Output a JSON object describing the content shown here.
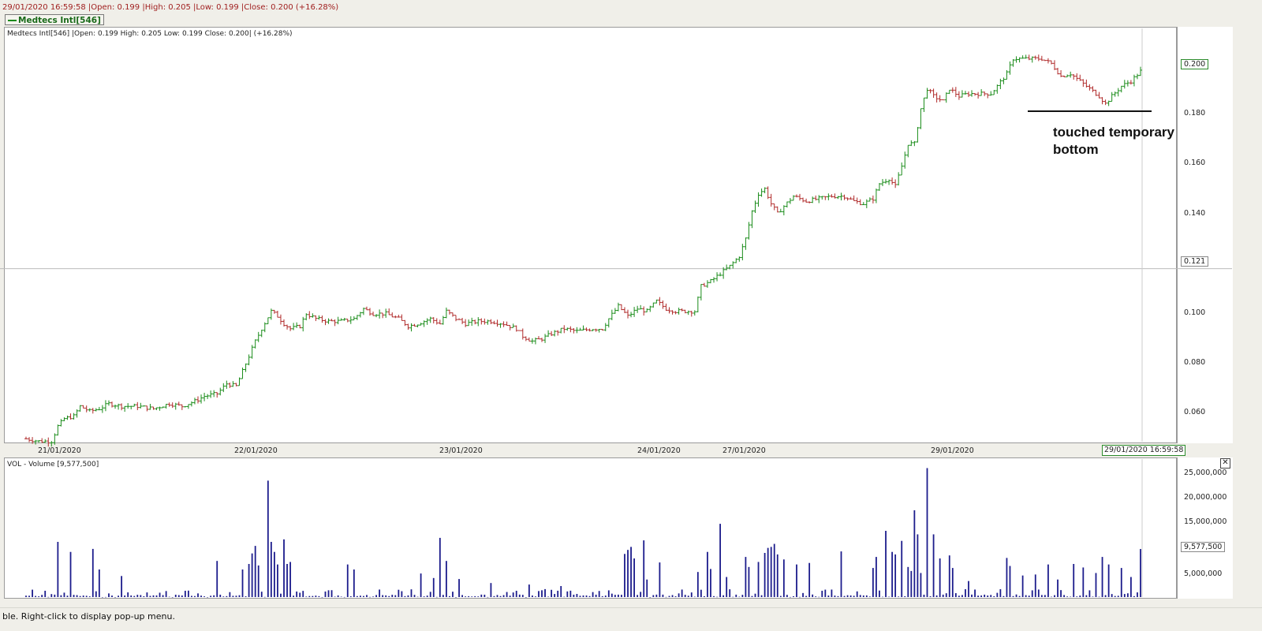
{
  "header": {
    "info": "29/01/2020 16:59:58 |Open: 0.199 |High: 0.205 |Low: 0.199 |Close: 0.200 (+16.28%)",
    "series_tag": "Medtecs Intl[546]"
  },
  "price_panel": {
    "title": "Medtecs Intl[546] |Open: 0.199  High: 0.205  Low: 0.199  Close: 0.200| (+16.28%)",
    "last_value_label": "0.200",
    "crosshair_value_label": "0.121",
    "crosshair_time_label": "29/01/2020 16:59:58",
    "annotation_line1": "touched temporary",
    "annotation_line2": "bottom"
  },
  "volume_panel": {
    "title": "VOL - Volume [9,577,500]",
    "last_value_label": "9,577,500",
    "close_icon": "close-icon",
    "close_glyph": "✕"
  },
  "status_bar": {
    "text": "ble. Right-click to display pop-up menu."
  },
  "colors": {
    "up": "#1a8c1a",
    "down": "#b02a2a",
    "volume": "#1c1c8c",
    "annotation": "#111111"
  },
  "chart_data": [
    {
      "type": "ohlc",
      "title": "Medtecs Intl[546]",
      "y_tick_labels": [
        "0.060",
        "0.080",
        "0.100",
        "0.120",
        "0.140",
        "0.160",
        "0.180"
      ],
      "y_ticks": [
        0.06,
        0.08,
        0.1,
        0.12,
        0.14,
        0.16,
        0.18
      ],
      "x_tick_labels": [
        "21/01/2020",
        "22/01/2020",
        "23/01/2020",
        "24/01/2020",
        "27/01/2020",
        "29/01/2020"
      ],
      "ylim": [
        0.047,
        0.215
      ],
      "last_close": 0.2,
      "crosshair_value": 0.121,
      "annotated_support_level": 0.184,
      "close_path": [
        [
          0,
          0.053
        ],
        [
          4,
          0.052
        ],
        [
          8,
          0.052
        ],
        [
          10,
          0.058
        ],
        [
          12,
          0.061
        ],
        [
          15,
          0.062
        ],
        [
          17,
          0.066
        ],
        [
          20,
          0.064
        ],
        [
          23,
          0.065
        ],
        [
          26,
          0.067
        ],
        [
          30,
          0.066
        ],
        [
          35,
          0.066
        ],
        [
          40,
          0.065
        ],
        [
          45,
          0.067
        ],
        [
          49,
          0.066
        ],
        [
          53,
          0.068
        ],
        [
          56,
          0.07
        ],
        [
          60,
          0.071
        ],
        [
          63,
          0.075
        ],
        [
          66,
          0.074
        ],
        [
          68,
          0.08
        ],
        [
          70,
          0.086
        ],
        [
          72,
          0.092
        ],
        [
          74,
          0.097
        ],
        [
          77,
          0.104
        ],
        [
          79,
          0.102
        ],
        [
          81,
          0.099
        ],
        [
          83,
          0.097
        ],
        [
          86,
          0.098
        ],
        [
          88,
          0.103
        ],
        [
          91,
          0.101
        ],
        [
          95,
          0.1
        ],
        [
          99,
          0.1
        ],
        [
          103,
          0.101
        ],
        [
          106,
          0.105
        ],
        [
          109,
          0.103
        ],
        [
          113,
          0.103
        ],
        [
          117,
          0.101
        ],
        [
          120,
          0.098
        ],
        [
          123,
          0.099
        ],
        [
          127,
          0.101
        ],
        [
          130,
          0.099
        ],
        [
          132,
          0.104
        ],
        [
          135,
          0.101
        ],
        [
          138,
          0.099
        ],
        [
          142,
          0.1
        ],
        [
          146,
          0.1
        ],
        [
          150,
          0.099
        ],
        [
          154,
          0.097
        ],
        [
          156,
          0.094
        ],
        [
          159,
          0.092
        ],
        [
          162,
          0.093
        ],
        [
          165,
          0.095
        ],
        [
          169,
          0.097
        ],
        [
          173,
          0.096
        ],
        [
          178,
          0.097
        ],
        [
          181,
          0.097
        ],
        [
          183,
          0.101
        ],
        [
          186,
          0.106
        ],
        [
          189,
          0.102
        ],
        [
          192,
          0.105
        ],
        [
          195,
          0.104
        ],
        [
          198,
          0.108
        ],
        [
          201,
          0.105
        ],
        [
          204,
          0.104
        ],
        [
          208,
          0.104
        ],
        [
          210,
          0.104
        ],
        [
          212,
          0.114
        ],
        [
          215,
          0.116
        ],
        [
          218,
          0.119
        ],
        [
          221,
          0.122
        ],
        [
          224,
          0.126
        ],
        [
          226,
          0.133
        ],
        [
          228,
          0.144
        ],
        [
          230,
          0.151
        ],
        [
          232,
          0.153
        ],
        [
          234,
          0.147
        ],
        [
          236,
          0.143
        ],
        [
          238,
          0.146
        ],
        [
          241,
          0.15
        ],
        [
          245,
          0.148
        ],
        [
          249,
          0.149
        ],
        [
          253,
          0.15
        ],
        [
          257,
          0.15
        ],
        [
          260,
          0.148
        ],
        [
          263,
          0.147
        ],
        [
          266,
          0.149
        ],
        [
          268,
          0.155
        ],
        [
          271,
          0.157
        ],
        [
          273,
          0.154
        ],
        [
          275,
          0.162
        ],
        [
          277,
          0.171
        ],
        [
          279,
          0.171
        ],
        [
          281,
          0.185
        ],
        [
          283,
          0.193
        ],
        [
          285,
          0.19
        ],
        [
          288,
          0.188
        ],
        [
          290,
          0.193
        ],
        [
          293,
          0.19
        ],
        [
          296,
          0.191
        ],
        [
          300,
          0.191
        ],
        [
          303,
          0.191
        ],
        [
          305,
          0.194
        ],
        [
          308,
          0.199
        ],
        [
          310,
          0.205
        ],
        [
          313,
          0.205
        ],
        [
          316,
          0.205
        ],
        [
          319,
          0.205
        ],
        [
          322,
          0.203
        ],
        [
          325,
          0.198
        ],
        [
          328,
          0.199
        ],
        [
          331,
          0.196
        ],
        [
          334,
          0.193
        ],
        [
          337,
          0.19
        ],
        [
          339,
          0.187
        ],
        [
          341,
          0.19
        ],
        [
          344,
          0.194
        ],
        [
          347,
          0.196
        ],
        [
          350,
          0.2
        ]
      ]
    },
    {
      "type": "bar",
      "title": "VOL - Volume",
      "y_tick_labels": [
        "5,000,000",
        "10,000,000",
        "15,000,000",
        "20,000,000",
        "25,000,000"
      ],
      "y_ticks": [
        5000000,
        10000000,
        15000000,
        20000000,
        25000000
      ],
      "ylim": [
        0,
        27500000
      ],
      "last_value": 9577500,
      "major_bars": [
        [
          10,
          11000000
        ],
        [
          14,
          9000000
        ],
        [
          21,
          9600000
        ],
        [
          23,
          5500000
        ],
        [
          30,
          4200000
        ],
        [
          60,
          7200000
        ],
        [
          68,
          5500000
        ],
        [
          70,
          6600000
        ],
        [
          71,
          8700000
        ],
        [
          72,
          10200000
        ],
        [
          73,
          6300000
        ],
        [
          76,
          23200000
        ],
        [
          77,
          11000000
        ],
        [
          78,
          9000000
        ],
        [
          79,
          6500000
        ],
        [
          81,
          11500000
        ],
        [
          82,
          6600000
        ],
        [
          83,
          7000000
        ],
        [
          101,
          6500000
        ],
        [
          103,
          5500000
        ],
        [
          124,
          4700000
        ],
        [
          128,
          3800000
        ],
        [
          130,
          11800000
        ],
        [
          132,
          7200000
        ],
        [
          136,
          3600000
        ],
        [
          146,
          2800000
        ],
        [
          158,
          2500000
        ],
        [
          168,
          2200000
        ],
        [
          188,
          8600000
        ],
        [
          189,
          9400000
        ],
        [
          190,
          10000000
        ],
        [
          191,
          7700000
        ],
        [
          194,
          11300000
        ],
        [
          195,
          3500000
        ],
        [
          199,
          6900000
        ],
        [
          211,
          5000000
        ],
        [
          214,
          9000000
        ],
        [
          215,
          5600000
        ],
        [
          218,
          14600000
        ],
        [
          220,
          4000000
        ],
        [
          226,
          8000000
        ],
        [
          227,
          6000000
        ],
        [
          230,
          7000000
        ],
        [
          232,
          8800000
        ],
        [
          233,
          9800000
        ],
        [
          234,
          10000000
        ],
        [
          235,
          10600000
        ],
        [
          236,
          8500000
        ],
        [
          238,
          7500000
        ],
        [
          242,
          6500000
        ],
        [
          246,
          6800000
        ],
        [
          256,
          9100000
        ],
        [
          266,
          5800000
        ],
        [
          267,
          8000000
        ],
        [
          270,
          13200000
        ],
        [
          272,
          9000000
        ],
        [
          273,
          8500000
        ],
        [
          275,
          11200000
        ],
        [
          277,
          6000000
        ],
        [
          278,
          5200000
        ],
        [
          279,
          17300000
        ],
        [
          280,
          12500000
        ],
        [
          281,
          4800000
        ],
        [
          283,
          25700000
        ],
        [
          285,
          12500000
        ],
        [
          287,
          7700000
        ],
        [
          290,
          8300000
        ],
        [
          291,
          5800000
        ],
        [
          296,
          3200000
        ],
        [
          308,
          7800000
        ],
        [
          309,
          6200000
        ],
        [
          313,
          4300000
        ],
        [
          317,
          4500000
        ],
        [
          321,
          6500000
        ],
        [
          324,
          3500000
        ],
        [
          329,
          6600000
        ],
        [
          332,
          5900000
        ],
        [
          336,
          4800000
        ],
        [
          338,
          8000000
        ],
        [
          340,
          6500000
        ],
        [
          344,
          5800000
        ],
        [
          347,
          4000000
        ],
        [
          350,
          9577500
        ]
      ]
    }
  ]
}
